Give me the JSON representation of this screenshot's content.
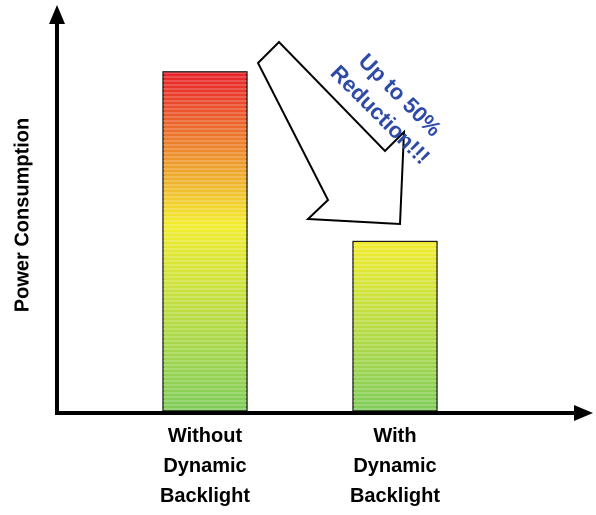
{
  "chart_data": {
    "type": "bar",
    "title": "",
    "xlabel": "",
    "ylabel": "Power Consumption",
    "categories": [
      "Without\nDynamic\nBacklight",
      "With\nDynamic\nBacklight"
    ],
    "category_lines": [
      [
        "Without",
        "Dynamic",
        "Backlight"
      ],
      [
        "With",
        "Dynamic",
        "Backlight"
      ]
    ],
    "values": [
      100,
      50
    ],
    "ylim": [
      0,
      120
    ],
    "grid": false,
    "bar_gradient": [
      "#e8202a",
      "#f2ec2f",
      "#7fcc5a"
    ],
    "annotation": {
      "lines": [
        "Up to 50%",
        "Reduction!!!"
      ],
      "color": "#2e4aa8"
    }
  }
}
